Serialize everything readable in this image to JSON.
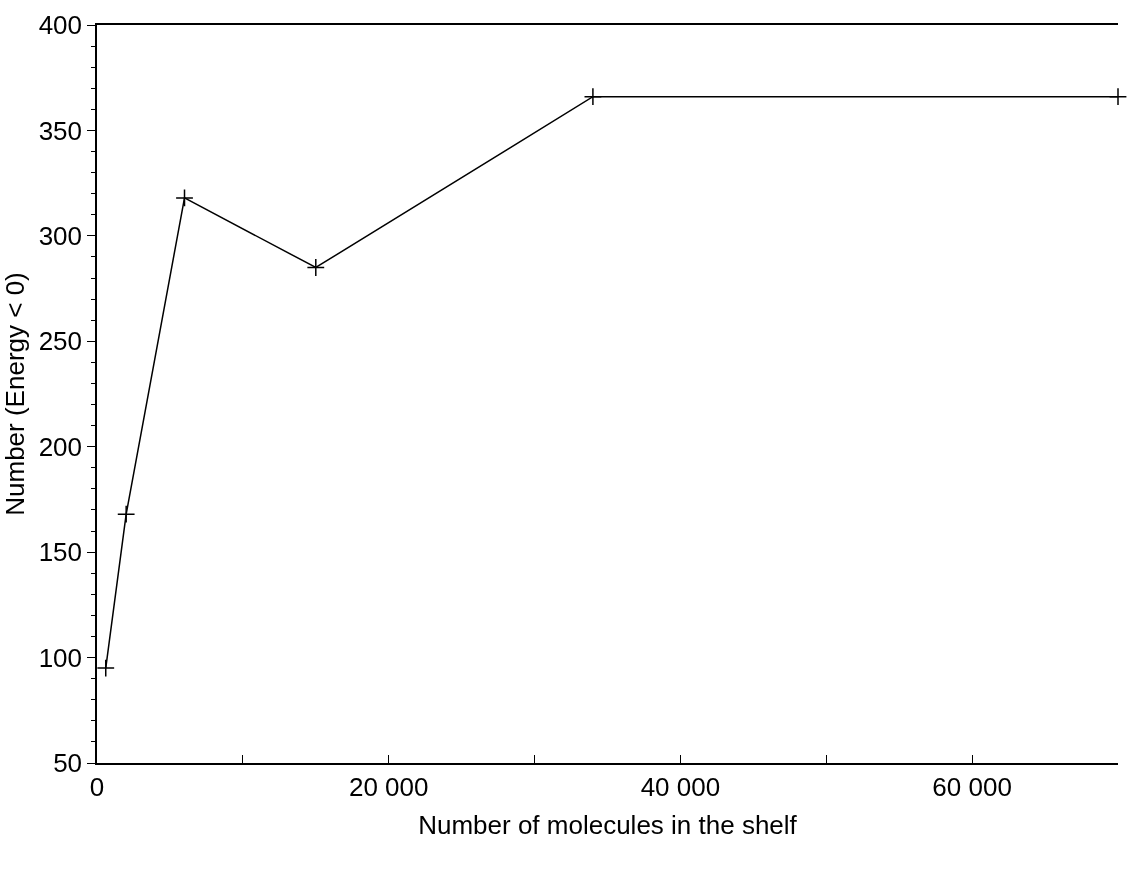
{
  "chart_data": {
    "type": "line",
    "xlabel": "Number of molecules in the shelf",
    "ylabel": "Number (Energy < 0)",
    "x": [
      600,
      2000,
      6000,
      15000,
      34000,
      70000
    ],
    "series": [
      {
        "color": "#000000",
        "values": [
          95,
          168,
          318,
          285,
          366,
          366
        ]
      }
    ],
    "xlim": [
      0,
      70000
    ],
    "xticks": [
      0,
      {
        "value": 10000,
        "label": null
      },
      {
        "value": 20000,
        "label": "20 000"
      },
      {
        "value": 30000,
        "label": null
      },
      {
        "value": 40000,
        "label": "40 000"
      },
      {
        "value": 50000,
        "label": null
      },
      {
        "value": 60000,
        "label": "60 000"
      }
    ],
    "ylim": [
      50,
      400
    ],
    "yticks": [
      50,
      100,
      150,
      200,
      250,
      300,
      350,
      400
    ],
    "marker": "cross",
    "line_style": "solid"
  }
}
